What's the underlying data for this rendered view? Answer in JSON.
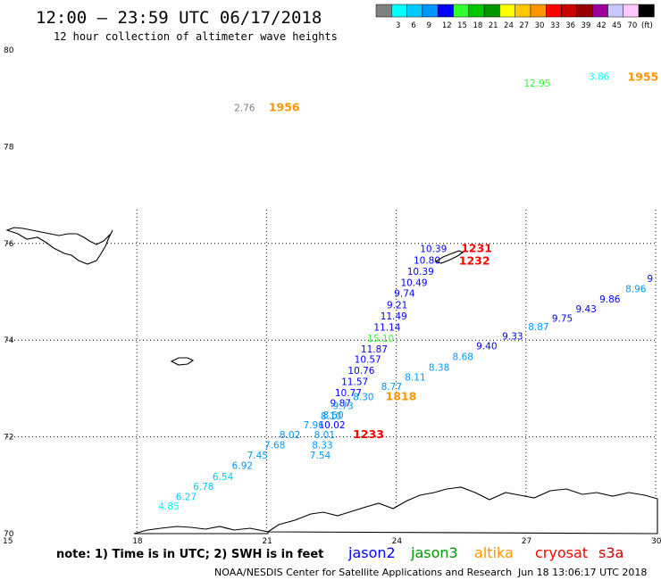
{
  "header": {
    "title": "12:00 – 23:59 UTC 06/17/2018",
    "subtitle": "12 hour collection of altimeter wave heights"
  },
  "legend": {
    "unit": "(ft)",
    "bins": [
      {
        "color": "#808080",
        "label": ""
      },
      {
        "color": "#00ffff",
        "label": "3"
      },
      {
        "color": "#00c8ff",
        "label": "6"
      },
      {
        "color": "#0096ff",
        "label": "9"
      },
      {
        "color": "#0000ff",
        "label": "12"
      },
      {
        "color": "#32ff32",
        "label": "15"
      },
      {
        "color": "#00c800",
        "label": "18"
      },
      {
        "color": "#009600",
        "label": "21"
      },
      {
        "color": "#ffff00",
        "label": "24"
      },
      {
        "color": "#ffc800",
        "label": "27"
      },
      {
        "color": "#ff9600",
        "label": "30"
      },
      {
        "color": "#ff0000",
        "label": "33"
      },
      {
        "color": "#c80000",
        "label": "36"
      },
      {
        "color": "#960000",
        "label": "39"
      },
      {
        "color": "#9b009b",
        "label": "42"
      },
      {
        "color": "#c8c8ff",
        "label": "45"
      },
      {
        "color": "#ffc8ff",
        "label": "70"
      },
      {
        "color": "#000000",
        "label": ""
      }
    ]
  },
  "axes": {
    "lat_labels": [
      "80",
      "78",
      "76",
      "74",
      "72",
      "70"
    ],
    "lon_labels": [
      "15",
      "18",
      "21",
      "24",
      "27",
      "30"
    ]
  },
  "map_data": {
    "lon_range": [
      15,
      30
    ],
    "lat_range": [
      70,
      80
    ],
    "gridlines": {
      "lon": [
        18,
        21,
        24,
        27,
        30
      ],
      "lat": [
        72,
        74,
        76
      ]
    },
    "observations": [
      {
        "lat": 79.24,
        "lon": 26.95,
        "text": "12.95",
        "color": "#32ff32"
      },
      {
        "lat": 79.38,
        "lon": 28.45,
        "text": "3.86",
        "color": "#00ffff"
      },
      {
        "lat": 78.74,
        "lon": 20.25,
        "text": "2.76",
        "color": "#808080"
      },
      {
        "lat": 75.82,
        "lon": 24.55,
        "text": "10.39",
        "color": "#0000ff"
      },
      {
        "lat": 75.58,
        "lon": 24.4,
        "text": "10.80",
        "color": "#0000ff"
      },
      {
        "lat": 75.35,
        "lon": 24.25,
        "text": "10.39",
        "color": "#0000ff"
      },
      {
        "lat": 75.12,
        "lon": 24.1,
        "text": "10.49",
        "color": "#0000ff"
      },
      {
        "lat": 74.9,
        "lon": 23.95,
        "text": "9.74",
        "color": "#0000ff"
      },
      {
        "lat": 74.66,
        "lon": 23.78,
        "text": "9.21",
        "color": "#0000ff"
      },
      {
        "lat": 74.43,
        "lon": 23.63,
        "text": "11.49",
        "color": "#0000ff"
      },
      {
        "lat": 74.2,
        "lon": 23.48,
        "text": "11.14",
        "color": "#0000ff"
      },
      {
        "lat": 73.97,
        "lon": 23.33,
        "text": "15.10",
        "color": "#32ff32"
      },
      {
        "lat": 73.75,
        "lon": 23.18,
        "text": "11.87",
        "color": "#0000ff"
      },
      {
        "lat": 73.53,
        "lon": 23.03,
        "text": "10.57",
        "color": "#0000ff"
      },
      {
        "lat": 73.3,
        "lon": 22.88,
        "text": "10.76",
        "color": "#0000ff"
      },
      {
        "lat": 73.07,
        "lon": 22.73,
        "text": "11.57",
        "color": "#0000ff"
      },
      {
        "lat": 72.84,
        "lon": 22.58,
        "text": "10.77",
        "color": "#0000ff"
      },
      {
        "lat": 72.63,
        "lon": 22.47,
        "text": "9.87",
        "color": "#0000ff"
      },
      {
        "lat": 72.57,
        "lon": 22.53,
        "text": "9.73",
        "color": "#0096ff"
      },
      {
        "lat": 72.38,
        "lon": 22.3,
        "text": "8.50",
        "color": "#0096ff"
      },
      {
        "lat": 72.18,
        "lon": 22.2,
        "text": "10.02",
        "color": "#0000ff"
      },
      {
        "lat": 75.2,
        "lon": 29.8,
        "text": "9",
        "color": "#0000ff"
      },
      {
        "lat": 74.99,
        "lon": 29.3,
        "text": "8.96",
        "color": "#0096ff"
      },
      {
        "lat": 74.78,
        "lon": 28.7,
        "text": "9.86",
        "color": "#0000ff"
      },
      {
        "lat": 74.58,
        "lon": 28.15,
        "text": "9.43",
        "color": "#0000ff"
      },
      {
        "lat": 74.38,
        "lon": 27.6,
        "text": "9.75",
        "color": "#0000ff"
      },
      {
        "lat": 74.21,
        "lon": 27.05,
        "text": "8.87",
        "color": "#0096ff"
      },
      {
        "lat": 74.01,
        "lon": 26.45,
        "text": "9.33",
        "color": "#0000ff"
      },
      {
        "lat": 73.81,
        "lon": 25.85,
        "text": "9.40",
        "color": "#0000ff"
      },
      {
        "lat": 73.59,
        "lon": 25.3,
        "text": "8.68",
        "color": "#0096ff"
      },
      {
        "lat": 73.37,
        "lon": 24.75,
        "text": "8.38",
        "color": "#0096ff"
      },
      {
        "lat": 73.16,
        "lon": 24.2,
        "text": "8.11",
        "color": "#0096ff"
      },
      {
        "lat": 72.97,
        "lon": 23.65,
        "text": "8.77",
        "color": "#0096ff"
      },
      {
        "lat": 72.76,
        "lon": 23.0,
        "text": "8.30",
        "color": "#0096ff"
      },
      {
        "lat": 72.36,
        "lon": 22.25,
        "text": "8.10",
        "color": "#0096ff"
      },
      {
        "lat": 71.97,
        "lon": 22.1,
        "text": "8.01",
        "color": "#0096ff"
      },
      {
        "lat": 71.76,
        "lon": 22.05,
        "text": "8.33",
        "color": "#0096ff"
      },
      {
        "lat": 71.55,
        "lon": 22.0,
        "text": "7.54",
        "color": "#0096ff"
      },
      {
        "lat": 72.18,
        "lon": 21.85,
        "text": "7.96",
        "color": "#0096ff"
      },
      {
        "lat": 71.97,
        "lon": 21.3,
        "text": "8.02",
        "color": "#0096ff"
      },
      {
        "lat": 71.76,
        "lon": 20.95,
        "text": "7.68",
        "color": "#0096ff"
      },
      {
        "lat": 71.55,
        "lon": 20.55,
        "text": "7.45",
        "color": "#0096ff"
      },
      {
        "lat": 71.34,
        "lon": 20.2,
        "text": "6.92",
        "color": "#0096ff"
      },
      {
        "lat": 71.11,
        "lon": 19.75,
        "text": "6.54",
        "color": "#00c8ff"
      },
      {
        "lat": 70.9,
        "lon": 19.3,
        "text": "6.78",
        "color": "#00c8ff"
      },
      {
        "lat": 70.69,
        "lon": 18.9,
        "text": "6.27",
        "color": "#00c8ff"
      },
      {
        "lat": 70.5,
        "lon": 18.5,
        "text": "4.85",
        "color": "#00ffff"
      }
    ],
    "time_labels": [
      {
        "lat": 79.36,
        "lon": 29.35,
        "text": "1955",
        "color": "#ff9600"
      },
      {
        "lat": 78.74,
        "lon": 21.05,
        "text": "1956",
        "color": "#ff9600"
      },
      {
        "lat": 75.82,
        "lon": 25.5,
        "text": "1231",
        "color": "#ff0000"
      },
      {
        "lat": 75.56,
        "lon": 25.45,
        "text": "1232",
        "color": "#ff0000"
      },
      {
        "lat": 72.76,
        "lon": 23.75,
        "text": "1818",
        "color": "#ff9600"
      },
      {
        "lat": 71.97,
        "lon": 23.0,
        "text": "1233",
        "color": "#ff0000"
      }
    ]
  },
  "note": "note:  1) Time is in UTC;  2) SWH is in feet",
  "missions": [
    {
      "name": "jason2",
      "color": "#0000ff"
    },
    {
      "name": "jason3",
      "color": "#009600"
    },
    {
      "name": "altika",
      "color": "#ff9600"
    },
    {
      "name": "cryosat",
      "color": "#ff0000"
    },
    {
      "name": "s3a",
      "color": "#c80000"
    }
  ],
  "footer": {
    "credit": "NOAA/NESDIS Center for Satellite Applications and Research",
    "timestamp": "Jun 18 13:06:17 UTC 2018"
  }
}
